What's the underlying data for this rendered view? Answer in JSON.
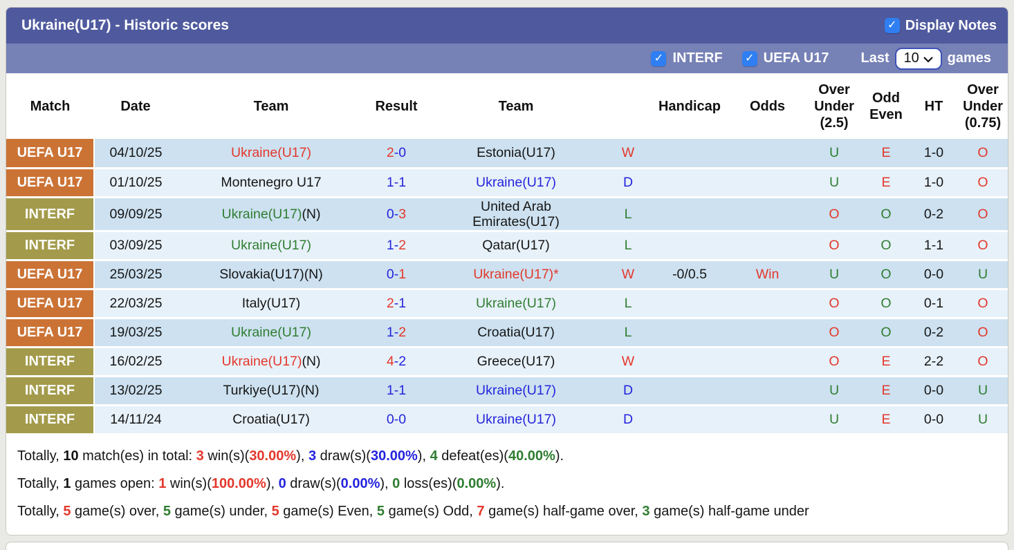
{
  "header": {
    "title": "Ukraine(U17) - Historic scores",
    "display_notes_label": "Display Notes",
    "display_notes_checked": true,
    "filters": [
      {
        "label": "INTERF",
        "checked": true
      },
      {
        "label": "UEFA U17",
        "checked": true
      }
    ],
    "last_label": "Last",
    "games_count": "10",
    "games_label": "games"
  },
  "table": {
    "columns": [
      "Match",
      "Date",
      "Team",
      "Result",
      "Team",
      "",
      "Handicap",
      "Odds",
      "Over Under (2.5)",
      "Odd Even",
      "HT",
      "Over Under (0.75)"
    ],
    "rows": [
      {
        "league": "UEFA U17",
        "league_style": "orange",
        "date": "04/10/25",
        "home": {
          "name": "Ukraine(U17)",
          "note": "",
          "color": "red"
        },
        "score": {
          "home": "2",
          "away": "0",
          "home_color": "red",
          "away_color": "blue"
        },
        "away": {
          "name": "Estonia(U17)",
          "note": "",
          "color": "black"
        },
        "wdl": {
          "text": "W",
          "color": "red"
        },
        "handicap": "",
        "odds": {
          "text": "",
          "color": "red"
        },
        "ou25": {
          "text": "U",
          "color": "green"
        },
        "oddeven": {
          "text": "E",
          "color": "red"
        },
        "ht": "1-0",
        "ou075": {
          "text": "O",
          "color": "red"
        }
      },
      {
        "league": "UEFA U17",
        "league_style": "orange",
        "date": "01/10/25",
        "home": {
          "name": "Montenegro U17",
          "note": "",
          "color": "black"
        },
        "score": {
          "home": "1",
          "away": "1",
          "home_color": "blue",
          "away_color": "blue"
        },
        "away": {
          "name": "Ukraine(U17)",
          "note": "",
          "color": "blue"
        },
        "wdl": {
          "text": "D",
          "color": "blue"
        },
        "handicap": "",
        "odds": {
          "text": "",
          "color": "red"
        },
        "ou25": {
          "text": "U",
          "color": "green"
        },
        "oddeven": {
          "text": "E",
          "color": "red"
        },
        "ht": "1-0",
        "ou075": {
          "text": "O",
          "color": "red"
        }
      },
      {
        "league": "INTERF",
        "league_style": "olive",
        "date": "09/09/25",
        "home": {
          "name": "Ukraine(U17)",
          "note": "(N)",
          "color": "green"
        },
        "score": {
          "home": "0",
          "away": "3",
          "home_color": "blue",
          "away_color": "red"
        },
        "away": {
          "name": "United Arab Emirates(U17)",
          "note": "",
          "color": "black"
        },
        "wdl": {
          "text": "L",
          "color": "green"
        },
        "handicap": "",
        "odds": {
          "text": "",
          "color": "red"
        },
        "ou25": {
          "text": "O",
          "color": "red"
        },
        "oddeven": {
          "text": "O",
          "color": "green"
        },
        "ht": "0-2",
        "ou075": {
          "text": "O",
          "color": "red"
        }
      },
      {
        "league": "INTERF",
        "league_style": "olive",
        "date": "03/09/25",
        "home": {
          "name": "Ukraine(U17)",
          "note": "",
          "color": "green"
        },
        "score": {
          "home": "1",
          "away": "2",
          "home_color": "blue",
          "away_color": "red"
        },
        "away": {
          "name": "Qatar(U17)",
          "note": "",
          "color": "black"
        },
        "wdl": {
          "text": "L",
          "color": "green"
        },
        "handicap": "",
        "odds": {
          "text": "",
          "color": "red"
        },
        "ou25": {
          "text": "O",
          "color": "red"
        },
        "oddeven": {
          "text": "O",
          "color": "green"
        },
        "ht": "1-1",
        "ou075": {
          "text": "O",
          "color": "red"
        }
      },
      {
        "league": "UEFA U17",
        "league_style": "orange",
        "date": "25/03/25",
        "home": {
          "name": "Slovakia(U17)",
          "note": "(N)",
          "color": "black"
        },
        "score": {
          "home": "0",
          "away": "1",
          "home_color": "blue",
          "away_color": "red"
        },
        "away": {
          "name": "Ukraine(U17)*",
          "note": "",
          "color": "red"
        },
        "wdl": {
          "text": "W",
          "color": "red"
        },
        "handicap": "-0/0.5",
        "odds": {
          "text": "Win",
          "color": "red"
        },
        "ou25": {
          "text": "U",
          "color": "green"
        },
        "oddeven": {
          "text": "O",
          "color": "green"
        },
        "ht": "0-0",
        "ou075": {
          "text": "U",
          "color": "green"
        }
      },
      {
        "league": "UEFA U17",
        "league_style": "orange",
        "date": "22/03/25",
        "home": {
          "name": "Italy(U17)",
          "note": "",
          "color": "black"
        },
        "score": {
          "home": "2",
          "away": "1",
          "home_color": "red",
          "away_color": "blue"
        },
        "away": {
          "name": "Ukraine(U17)",
          "note": "",
          "color": "green"
        },
        "wdl": {
          "text": "L",
          "color": "green"
        },
        "handicap": "",
        "odds": {
          "text": "",
          "color": "red"
        },
        "ou25": {
          "text": "O",
          "color": "red"
        },
        "oddeven": {
          "text": "O",
          "color": "green"
        },
        "ht": "0-1",
        "ou075": {
          "text": "O",
          "color": "red"
        }
      },
      {
        "league": "UEFA U17",
        "league_style": "orange",
        "date": "19/03/25",
        "home": {
          "name": "Ukraine(U17)",
          "note": "",
          "color": "green"
        },
        "score": {
          "home": "1",
          "away": "2",
          "home_color": "blue",
          "away_color": "red"
        },
        "away": {
          "name": "Croatia(U17)",
          "note": "",
          "color": "black"
        },
        "wdl": {
          "text": "L",
          "color": "green"
        },
        "handicap": "",
        "odds": {
          "text": "",
          "color": "red"
        },
        "ou25": {
          "text": "O",
          "color": "red"
        },
        "oddeven": {
          "text": "O",
          "color": "green"
        },
        "ht": "0-2",
        "ou075": {
          "text": "O",
          "color": "red"
        }
      },
      {
        "league": "INTERF",
        "league_style": "olive",
        "date": "16/02/25",
        "home": {
          "name": "Ukraine(U17)",
          "note": "(N)",
          "color": "red"
        },
        "score": {
          "home": "4",
          "away": "2",
          "home_color": "red",
          "away_color": "blue"
        },
        "away": {
          "name": "Greece(U17)",
          "note": "",
          "color": "black"
        },
        "wdl": {
          "text": "W",
          "color": "red"
        },
        "handicap": "",
        "odds": {
          "text": "",
          "color": "red"
        },
        "ou25": {
          "text": "O",
          "color": "red"
        },
        "oddeven": {
          "text": "E",
          "color": "red"
        },
        "ht": "2-2",
        "ou075": {
          "text": "O",
          "color": "red"
        }
      },
      {
        "league": "INTERF",
        "league_style": "olive",
        "date": "13/02/25",
        "home": {
          "name": "Turkiye(U17)",
          "note": "(N)",
          "color": "black"
        },
        "score": {
          "home": "1",
          "away": "1",
          "home_color": "blue",
          "away_color": "blue"
        },
        "away": {
          "name": "Ukraine(U17)",
          "note": "",
          "color": "blue"
        },
        "wdl": {
          "text": "D",
          "color": "blue"
        },
        "handicap": "",
        "odds": {
          "text": "",
          "color": "red"
        },
        "ou25": {
          "text": "U",
          "color": "green"
        },
        "oddeven": {
          "text": "E",
          "color": "red"
        },
        "ht": "0-0",
        "ou075": {
          "text": "U",
          "color": "green"
        }
      },
      {
        "league": "INTERF",
        "league_style": "olive",
        "date": "14/11/24",
        "home": {
          "name": "Croatia(U17)",
          "note": "",
          "color": "black"
        },
        "score": {
          "home": "0",
          "away": "0",
          "home_color": "blue",
          "away_color": "blue"
        },
        "away": {
          "name": "Ukraine(U17)",
          "note": "",
          "color": "blue"
        },
        "wdl": {
          "text": "D",
          "color": "blue"
        },
        "handicap": "",
        "odds": {
          "text": "",
          "color": "red"
        },
        "ou25": {
          "text": "U",
          "color": "green"
        },
        "oddeven": {
          "text": "E",
          "color": "red"
        },
        "ht": "0-0",
        "ou075": {
          "text": "U",
          "color": "green"
        }
      }
    ]
  },
  "summary": {
    "lines": [
      [
        {
          "t": "Totally, ",
          "c": "black",
          "b": false
        },
        {
          "t": "10",
          "c": "black",
          "b": true
        },
        {
          "t": " match(es) in total: ",
          "c": "black",
          "b": false
        },
        {
          "t": "3",
          "c": "red",
          "b": true
        },
        {
          "t": " win(s)(",
          "c": "black",
          "b": false
        },
        {
          "t": "30.00%",
          "c": "red",
          "b": true
        },
        {
          "t": "), ",
          "c": "black",
          "b": false
        },
        {
          "t": "3",
          "c": "blue",
          "b": true
        },
        {
          "t": " draw(s)(",
          "c": "black",
          "b": false
        },
        {
          "t": "30.00%",
          "c": "blue",
          "b": true
        },
        {
          "t": "), ",
          "c": "black",
          "b": false
        },
        {
          "t": "4",
          "c": "green",
          "b": true
        },
        {
          "t": " defeat(es)(",
          "c": "black",
          "b": false
        },
        {
          "t": "40.00%",
          "c": "green",
          "b": true
        },
        {
          "t": ").",
          "c": "black",
          "b": false
        }
      ],
      [
        {
          "t": "Totally, ",
          "c": "black",
          "b": false
        },
        {
          "t": "1",
          "c": "black",
          "b": true
        },
        {
          "t": " games open: ",
          "c": "black",
          "b": false
        },
        {
          "t": "1",
          "c": "red",
          "b": true
        },
        {
          "t": " win(s)(",
          "c": "black",
          "b": false
        },
        {
          "t": "100.00%",
          "c": "red",
          "b": true
        },
        {
          "t": "), ",
          "c": "black",
          "b": false
        },
        {
          "t": "0",
          "c": "blue",
          "b": true
        },
        {
          "t": " draw(s)(",
          "c": "black",
          "b": false
        },
        {
          "t": "0.00%",
          "c": "blue",
          "b": true
        },
        {
          "t": "), ",
          "c": "black",
          "b": false
        },
        {
          "t": "0",
          "c": "green",
          "b": true
        },
        {
          "t": " loss(es)(",
          "c": "black",
          "b": false
        },
        {
          "t": "0.00%",
          "c": "green",
          "b": true
        },
        {
          "t": ").",
          "c": "black",
          "b": false
        }
      ],
      [
        {
          "t": "Totally, ",
          "c": "black",
          "b": false
        },
        {
          "t": "5",
          "c": "red",
          "b": true
        },
        {
          "t": " game(s) over, ",
          "c": "black",
          "b": false
        },
        {
          "t": "5",
          "c": "green",
          "b": true
        },
        {
          "t": " game(s) under, ",
          "c": "black",
          "b": false
        },
        {
          "t": "5",
          "c": "red",
          "b": true
        },
        {
          "t": " game(s) Even, ",
          "c": "black",
          "b": false
        },
        {
          "t": "5",
          "c": "green",
          "b": true
        },
        {
          "t": " game(s) Odd, ",
          "c": "black",
          "b": false
        },
        {
          "t": "7",
          "c": "red",
          "b": true
        },
        {
          "t": " game(s) half-game over, ",
          "c": "black",
          "b": false
        },
        {
          "t": "3",
          "c": "green",
          "b": true
        },
        {
          "t": " game(s) half-game under",
          "c": "black",
          "b": false
        }
      ]
    ]
  },
  "colors": {
    "bar_top": "#4f5a9e",
    "bar_filters": "#7681b6",
    "badge_uefa": "#cb7335",
    "badge_interf": "#a39b4b",
    "row_dark": "#cde1f0",
    "row_light": "#e7f1f9",
    "red": "#e3382c",
    "blue": "#2424dd",
    "green": "#2f7d31",
    "checkbox": "#2f7ff2"
  },
  "icons": {
    "check": "✓",
    "score_dash": "-"
  }
}
